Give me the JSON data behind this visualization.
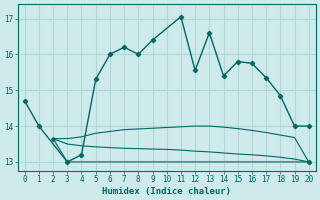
{
  "xlabel": "Humidex (Indice chaleur)",
  "bg_color": "#ceeaea",
  "grid_color": "#b0d8d8",
  "line_color": "#006666",
  "xlim": [
    -0.5,
    20.5
  ],
  "ylim": [
    12.75,
    17.4
  ],
  "yticks": [
    13,
    14,
    15,
    16,
    17
  ],
  "xticks": [
    0,
    1,
    2,
    3,
    4,
    5,
    6,
    7,
    8,
    9,
    10,
    11,
    12,
    13,
    14,
    15,
    16,
    17,
    18,
    19,
    20
  ],
  "main_line": {
    "x": [
      0,
      1,
      3,
      4,
      5,
      6,
      7,
      8,
      9,
      11,
      12,
      13,
      14,
      15,
      16,
      17,
      18,
      19,
      20
    ],
    "y": [
      14.7,
      14.0,
      13.0,
      13.2,
      15.3,
      16.0,
      16.2,
      16.0,
      16.4,
      17.05,
      15.55,
      16.6,
      15.4,
      15.8,
      15.75,
      15.35,
      14.85,
      14.0,
      14.0
    ]
  },
  "flat_lines": [
    {
      "x": [
        2,
        3,
        4,
        5,
        6,
        7,
        8,
        9,
        10,
        11,
        12,
        13,
        14,
        15,
        16,
        17,
        18,
        19,
        20
      ],
      "y": [
        13.65,
        13.65,
        13.7,
        13.8,
        13.85,
        13.9,
        13.92,
        13.94,
        13.96,
        13.98,
        14.0,
        14.0,
        13.97,
        13.93,
        13.88,
        13.82,
        13.75,
        13.68,
        13.0
      ]
    },
    {
      "x": [
        2,
        3,
        4,
        5,
        6,
        7,
        8,
        9,
        10,
        11,
        12,
        13,
        14,
        15,
        16,
        17,
        18,
        19,
        20
      ],
      "y": [
        13.65,
        13.5,
        13.45,
        13.42,
        13.4,
        13.38,
        13.37,
        13.36,
        13.35,
        13.33,
        13.3,
        13.28,
        13.25,
        13.22,
        13.2,
        13.17,
        13.13,
        13.08,
        13.0
      ]
    },
    {
      "x": [
        2,
        3,
        4,
        5,
        6,
        7,
        8,
        9,
        10,
        11,
        12,
        13,
        14,
        15,
        16,
        17,
        18,
        19,
        20
      ],
      "y": [
        13.65,
        13.0,
        13.0,
        13.0,
        13.0,
        13.0,
        13.0,
        13.0,
        13.0,
        13.0,
        13.0,
        13.0,
        13.0,
        13.0,
        13.0,
        13.0,
        13.0,
        13.0,
        13.0
      ]
    }
  ],
  "marker_x": [
    2,
    3,
    4,
    5,
    20
  ],
  "marker_y": [
    13.65,
    13.0,
    13.2,
    15.3,
    13.0
  ]
}
